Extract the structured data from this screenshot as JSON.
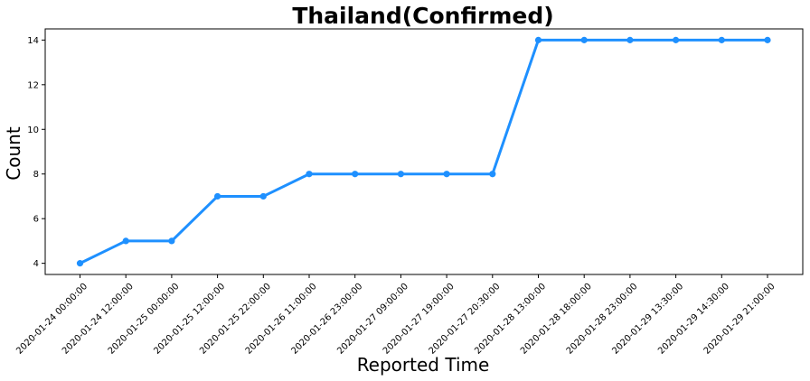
{
  "chart_data": {
    "type": "line",
    "title": "Thailand(Confirmed)",
    "xlabel": "Reported Time",
    "ylabel": "Count",
    "categories": [
      "2020-01-24 00:00:00",
      "2020-01-24 12:00:00",
      "2020-01-25 00:00:00",
      "2020-01-25 12:00:00",
      "2020-01-25 22:00:00",
      "2020-01-26 11:00:00",
      "2020-01-26 23:00:00",
      "2020-01-27 09:00:00",
      "2020-01-27 19:00:00",
      "2020-01-27 20:30:00",
      "2020-01-28 13:00:00",
      "2020-01-28 18:00:00",
      "2020-01-28 23:00:00",
      "2020-01-29 13:30:00",
      "2020-01-29 14:30:00",
      "2020-01-29 21:00:00"
    ],
    "values": [
      4,
      5,
      5,
      7,
      7,
      8,
      8,
      8,
      8,
      8,
      14,
      14,
      14,
      14,
      14,
      14
    ],
    "yticks": [
      4,
      6,
      8,
      10,
      12,
      14
    ],
    "ylim": [
      3.5,
      14.5
    ],
    "grid": false,
    "line_color": "#1e90ff",
    "marker": "circle"
  }
}
